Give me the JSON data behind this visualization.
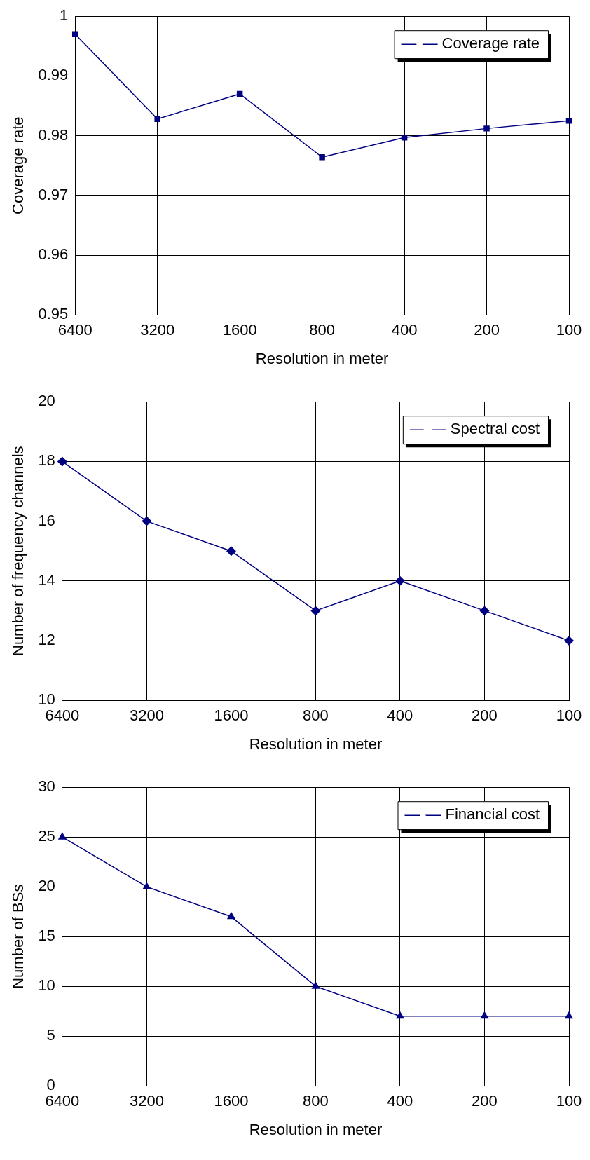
{
  "chart_data": [
    {
      "type": "line",
      "xlabel": "Resolution in meter",
      "ylabel": "Coverage rate",
      "categories": [
        "6400",
        "3200",
        "1600",
        "800",
        "400",
        "200",
        "100"
      ],
      "series": [
        {
          "name": "Coverage rate",
          "color": "#000080",
          "values": [
            0.997,
            0.9828,
            0.987,
            0.9764,
            0.9797,
            0.9812,
            0.9825
          ]
        }
      ],
      "ylim": [
        0.95,
        1
      ],
      "yticks": [
        0.95,
        0.96,
        0.97,
        0.98,
        0.99,
        1
      ],
      "grid": true,
      "legend": "top right",
      "marker": "square",
      "line_style": "solid"
    },
    {
      "type": "line",
      "xlabel": "Resolution in meter",
      "ylabel": "Number of frequency channels",
      "categories": [
        "6400",
        "3200",
        "1600",
        "800",
        "400",
        "200",
        "100"
      ],
      "series": [
        {
          "name": "Spectral cost",
          "color": "#000080",
          "values": [
            18,
            16,
            15,
            13,
            14,
            13,
            12
          ]
        }
      ],
      "ylim": [
        10,
        20
      ],
      "yticks": [
        10,
        12,
        14,
        16,
        18,
        20
      ],
      "grid": true,
      "legend": "top right",
      "marker": "diamond",
      "line_style": "solid"
    },
    {
      "type": "line",
      "xlabel": "Resolution in meter",
      "ylabel": "Number of BSs",
      "categories": [
        "6400",
        "3200",
        "1600",
        "800",
        "400",
        "200",
        "100"
      ],
      "series": [
        {
          "name": "Financial cost",
          "color": "#000080",
          "values": [
            25,
            20,
            17,
            10,
            7,
            7,
            7
          ]
        }
      ],
      "ylim": [
        0,
        30
      ],
      "yticks": [
        0,
        5,
        10,
        15,
        20,
        25,
        30
      ],
      "grid": true,
      "legend": "top right",
      "marker": "triangle",
      "line_style": "solid"
    }
  ]
}
